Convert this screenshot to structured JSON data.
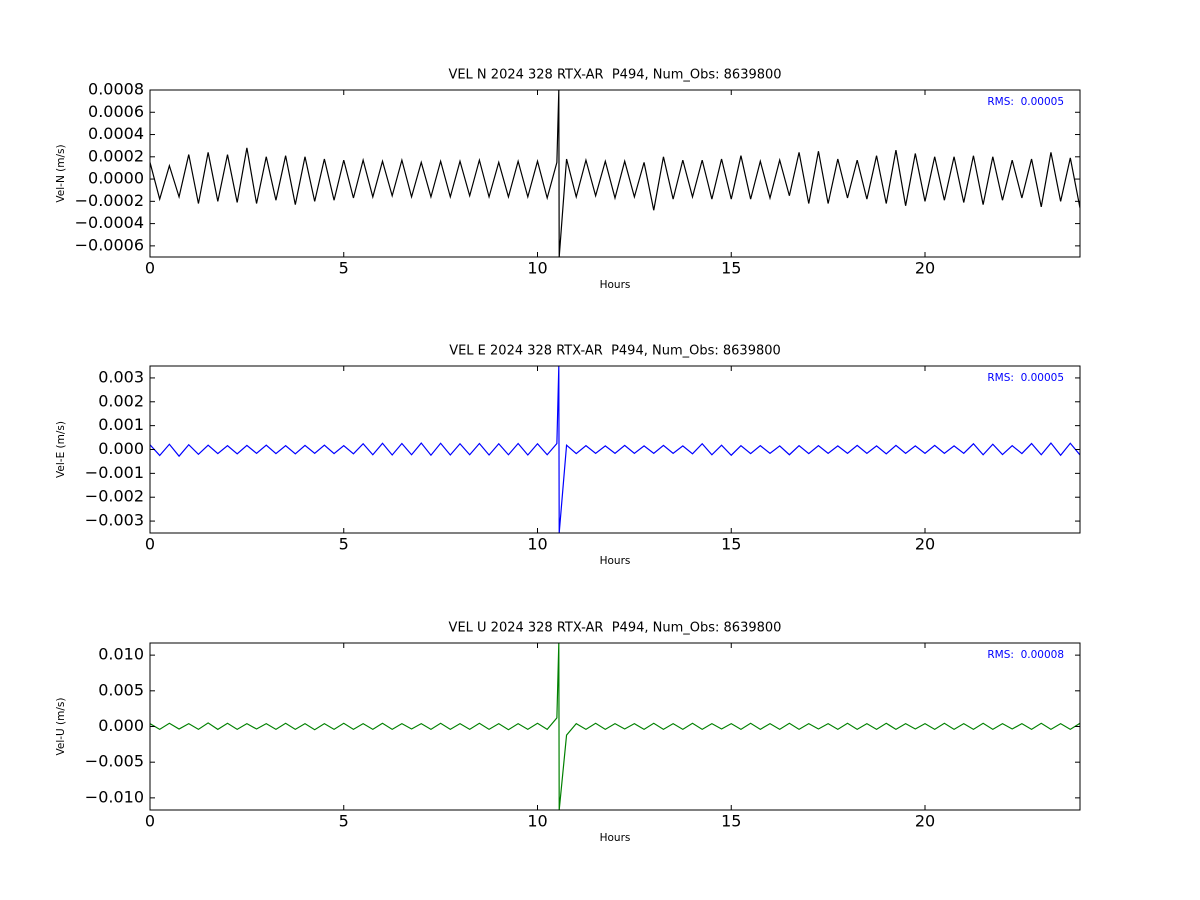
{
  "chart_data": [
    {
      "type": "line",
      "title": "VEL N 2024 328 RTX-AR  P494, Num_Obs: 8639800",
      "xlabel": "Hours",
      "ylabel": "Vel-N (m/s)",
      "annotation": "RMS:  0.00005",
      "annotation_color": "#0000ff",
      "color": "#000000",
      "xlim": [
        0,
        24
      ],
      "xticks": [
        0,
        5,
        10,
        15,
        20
      ],
      "ylim": [
        -0.0007,
        0.0008
      ],
      "yticks": [
        {
          "value": -0.0006,
          "label": "−0.0006"
        },
        {
          "value": -0.0004,
          "label": "−0.0004"
        },
        {
          "value": -0.0002,
          "label": "−0.0002"
        },
        {
          "value": 0,
          "label": "0.0000"
        },
        0.0002,
        0.0004,
        0.0006,
        0.0008
      ],
      "x": [
        0,
        0.25,
        0.5,
        0.75,
        1,
        1.25,
        1.5,
        1.75,
        2,
        2.25,
        2.5,
        2.75,
        3,
        3.25,
        3.5,
        3.75,
        4,
        4.25,
        4.5,
        4.75,
        5,
        5.25,
        5.5,
        5.75,
        6,
        6.25,
        6.5,
        6.75,
        7,
        7.25,
        7.5,
        7.75,
        8,
        8.25,
        8.5,
        8.75,
        9,
        9.25,
        9.5,
        9.75,
        10,
        10.25,
        10.5,
        10.55,
        10.56,
        10.75,
        11,
        11.25,
        11.5,
        11.75,
        12,
        12.25,
        12.5,
        12.75,
        13,
        13.25,
        13.5,
        13.75,
        14,
        14.25,
        14.5,
        14.75,
        15,
        15.25,
        15.5,
        15.75,
        16,
        16.25,
        16.5,
        16.75,
        17,
        17.25,
        17.5,
        17.75,
        18,
        18.25,
        18.5,
        18.75,
        19,
        19.25,
        19.5,
        19.75,
        20,
        20.25,
        20.5,
        20.75,
        21,
        21.25,
        21.5,
        21.75,
        22,
        22.25,
        22.5,
        22.75,
        23,
        23.25,
        23.5,
        23.75,
        24
      ],
      "values": [
        0.00015,
        -0.00018,
        0.00012,
        -0.00016,
        0.00022,
        -0.00022,
        0.00024,
        -0.0002,
        0.00022,
        -0.00021,
        0.00028,
        -0.00022,
        0.0002,
        -0.00019,
        0.00021,
        -0.00023,
        0.0002,
        -0.0002,
        0.00018,
        -0.00019,
        0.00017,
        -0.00017,
        0.00017,
        -0.00016,
        0.00016,
        -0.00015,
        0.00017,
        -0.00016,
        0.00015,
        -0.00016,
        0.00016,
        -0.00016,
        0.00016,
        -0.00015,
        0.00017,
        -0.00016,
        0.00015,
        -0.00016,
        0.00016,
        -0.00016,
        0.00016,
        -0.00017,
        0.00015,
        0.0008,
        -0.0007,
        0.00018,
        -0.00016,
        0.00017,
        -0.00015,
        0.00016,
        -0.00017,
        0.00016,
        -0.00016,
        0.00015,
        -0.00028,
        0.0002,
        -0.00018,
        0.00017,
        -0.00016,
        0.00017,
        -0.00018,
        0.00018,
        -0.00018,
        0.00021,
        -0.00018,
        0.00016,
        -0.00017,
        0.00017,
        -0.00015,
        0.00024,
        -0.00022,
        0.00025,
        -0.00022,
        0.00018,
        -0.00017,
        0.00017,
        -0.00018,
        0.00021,
        -0.00022,
        0.00026,
        -0.00024,
        0.00023,
        -0.0002,
        0.0002,
        -0.00019,
        0.0002,
        -0.00021,
        0.00021,
        -0.00023,
        0.0002,
        -0.00019,
        0.00017,
        -0.00017,
        0.00018,
        -0.00025,
        0.00024,
        -0.0002,
        0.00019,
        -0.00026
      ]
    },
    {
      "type": "line",
      "title": "VEL E 2024 328 RTX-AR  P494, Num_Obs: 8639800",
      "xlabel": "Hours",
      "ylabel": "Vel-E (m/s)",
      "annotation": "RMS:  0.00005",
      "annotation_color": "#0000ff",
      "color": "#0000ff",
      "xlim": [
        0,
        24
      ],
      "xticks": [
        0,
        5,
        10,
        15,
        20
      ],
      "ylim": [
        -0.0035,
        0.0035
      ],
      "yticks": [
        {
          "value": -0.003,
          "label": "−0.003"
        },
        {
          "value": -0.002,
          "label": "−0.002"
        },
        {
          "value": -0.001,
          "label": "−0.001"
        },
        {
          "value": 0,
          "label": "0.000"
        },
        0.001,
        0.002,
        0.003
      ],
      "x": [
        0,
        0.25,
        0.5,
        0.75,
        1,
        1.25,
        1.5,
        1.75,
        2,
        2.25,
        2.5,
        2.75,
        3,
        3.25,
        3.5,
        3.75,
        4,
        4.25,
        4.5,
        4.75,
        5,
        5.25,
        5.5,
        5.75,
        6,
        6.25,
        6.5,
        6.75,
        7,
        7.25,
        7.5,
        7.75,
        8,
        8.25,
        8.5,
        8.75,
        9,
        9.25,
        9.5,
        9.75,
        10,
        10.25,
        10.5,
        10.55,
        10.56,
        10.75,
        11,
        11.25,
        11.5,
        11.75,
        12,
        12.25,
        12.5,
        12.75,
        13,
        13.25,
        13.5,
        13.75,
        14,
        14.25,
        14.5,
        14.75,
        15,
        15.25,
        15.5,
        15.75,
        16,
        16.25,
        16.5,
        16.75,
        17,
        17.25,
        17.5,
        17.75,
        18,
        18.25,
        18.5,
        18.75,
        19,
        19.25,
        19.5,
        19.75,
        20,
        20.25,
        20.5,
        20.75,
        21,
        21.25,
        21.5,
        21.75,
        22,
        22.25,
        22.5,
        22.75,
        23,
        23.25,
        23.5,
        23.75,
        24
      ],
      "values": [
        0.0002,
        -0.00025,
        0.00022,
        -0.00028,
        0.0002,
        -0.0002,
        0.00018,
        -0.00017,
        0.00016,
        -0.00018,
        0.00017,
        -0.00016,
        0.00018,
        -0.00017,
        0.00016,
        -0.00018,
        0.00017,
        -0.00016,
        0.00018,
        -0.00017,
        0.00016,
        -0.00018,
        0.00024,
        -0.00022,
        0.00026,
        -0.00023,
        0.00025,
        -0.00022,
        0.00027,
        -0.00024,
        0.00026,
        -0.00023,
        0.00024,
        -0.00022,
        0.00025,
        -0.00023,
        0.00024,
        -0.00022,
        0.00025,
        -0.00023,
        0.00024,
        -0.00022,
        0.00025,
        0.0035,
        -0.0035,
        0.00018,
        -0.00017,
        0.00016,
        -0.00016,
        0.00015,
        -0.00016,
        0.00017,
        -0.00016,
        0.00015,
        -0.00016,
        0.00017,
        -0.00016,
        0.00015,
        -0.00018,
        0.00024,
        -0.00022,
        0.00018,
        -0.00024,
        0.00016,
        -0.00017,
        0.00016,
        -0.00016,
        0.00015,
        -0.00022,
        0.00016,
        -0.00017,
        0.00016,
        -0.00016,
        0.00015,
        -0.00016,
        0.00017,
        -0.00016,
        0.00015,
        -0.00018,
        0.00017,
        -0.00016,
        0.00015,
        -0.00016,
        0.00017,
        -0.00016,
        0.00015,
        -0.00016,
        0.00024,
        -0.00022,
        0.00022,
        -0.00021,
        0.00016,
        -0.00017,
        0.00025,
        -0.00022,
        0.00027,
        -0.00024,
        0.00026,
        -0.00023
      ]
    },
    {
      "type": "line",
      "title": "VEL U 2024 328 RTX-AR  P494, Num_Obs: 8639800",
      "xlabel": "Hours",
      "ylabel": "Vel-U (m/s)",
      "annotation": "RMS:  0.00008",
      "annotation_color": "#0000ff",
      "color": "#008000",
      "xlim": [
        0,
        24
      ],
      "xticks": [
        0,
        5,
        10,
        15,
        20
      ],
      "ylim": [
        -0.0117,
        0.0117
      ],
      "yticks": [
        {
          "value": -0.01,
          "label": "−0.010"
        },
        {
          "value": -0.005,
          "label": "−0.005"
        },
        {
          "value": 0,
          "label": "0.000"
        },
        0.005,
        {
          "value": 0.01,
          "label": "0.010"
        }
      ],
      "x": [
        0,
        0.25,
        0.5,
        0.75,
        1,
        1.25,
        1.5,
        1.75,
        2,
        2.25,
        2.5,
        2.75,
        3,
        3.25,
        3.5,
        3.75,
        4,
        4.25,
        4.5,
        4.75,
        5,
        5.25,
        5.5,
        5.75,
        6,
        6.25,
        6.5,
        6.75,
        7,
        7.25,
        7.5,
        7.75,
        8,
        8.25,
        8.5,
        8.75,
        9,
        9.25,
        9.5,
        9.75,
        10,
        10.25,
        10.5,
        10.55,
        10.56,
        10.75,
        11,
        11.25,
        11.5,
        11.75,
        12,
        12.25,
        12.5,
        12.75,
        13,
        13.25,
        13.5,
        13.75,
        14,
        14.25,
        14.5,
        14.75,
        15,
        15.25,
        15.5,
        15.75,
        16,
        16.25,
        16.5,
        16.75,
        17,
        17.25,
        17.5,
        17.75,
        18,
        18.25,
        18.5,
        18.75,
        19,
        19.25,
        19.5,
        19.75,
        20,
        20.25,
        20.5,
        20.75,
        21,
        21.25,
        21.5,
        21.75,
        22,
        22.25,
        22.5,
        22.75,
        23,
        23.25,
        23.5,
        23.75,
        24
      ],
      "values": [
        0.0004,
        -0.0004,
        0.00045,
        -0.00035,
        0.0004,
        -0.0004,
        0.0005,
        -0.0004,
        0.00045,
        -0.0004,
        0.0004,
        -0.00035,
        0.0004,
        -0.0004,
        0.00045,
        -0.0004,
        0.0004,
        -0.00045,
        0.0004,
        -0.0004,
        0.00045,
        -0.0004,
        0.0004,
        -0.0004,
        0.00045,
        -0.0004,
        0.0004,
        -0.00035,
        0.0004,
        -0.0004,
        0.00045,
        -0.0004,
        0.0004,
        -0.0004,
        0.00045,
        -0.0004,
        0.0004,
        -0.00045,
        0.0004,
        -0.0004,
        0.00045,
        -0.0004,
        0.0012,
        0.0117,
        -0.0117,
        -0.0012,
        0.0004,
        -0.0004,
        0.00045,
        -0.0004,
        0.0004,
        -0.00035,
        0.0004,
        -0.0004,
        0.00045,
        -0.0004,
        0.0004,
        -0.0004,
        0.00045,
        -0.0004,
        0.0004,
        -0.00035,
        0.0004,
        -0.0004,
        0.00045,
        -0.0004,
        0.0004,
        -0.0004,
        0.00045,
        -0.0004,
        0.0004,
        -0.00035,
        0.0004,
        -0.0004,
        0.00045,
        -0.0004,
        0.0004,
        -0.0004,
        0.00045,
        -0.0004,
        0.0004,
        -0.00035,
        0.0004,
        -0.0004,
        0.00045,
        -0.0004,
        0.0004,
        -0.0004,
        0.00045,
        -0.0004,
        0.0004,
        -0.00035,
        0.0004,
        -0.0004,
        0.00045,
        -0.0004,
        0.0004,
        -0.0004,
        0.00045
      ]
    }
  ]
}
